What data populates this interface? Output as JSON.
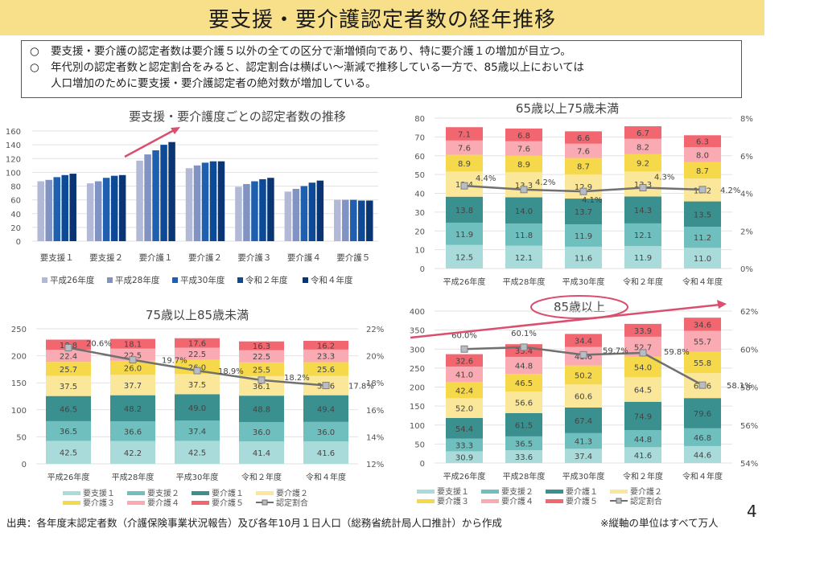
{
  "page": {
    "title": "要支援・要介護認定者数の経年推移",
    "summary": [
      {
        "bullet": "○",
        "text": "要支援・要介護の認定者数は要介護５以外の全ての区分で漸増傾向であり、特に要介護１の増加が目立つ。"
      },
      {
        "bullet": "○",
        "text": "年代別の認定者数と認定割合をみると、認定割合は横ばい～漸減で推移している一方で、85歳以上においては"
      },
      {
        "bullet": "",
        "text": "人口増加のために要支援・要介護認定者の絶対数が増加している。"
      }
    ],
    "source": "出典：各年度末認定者数（介護保険事業状況報告）及び各年10月１日人口（総務省統計局人口推計）から作成",
    "note": "※縦軸の単位はすべて万人",
    "page_number": "4"
  },
  "colors": {
    "years": [
      "#b1b9d6",
      "#8093c2",
      "#1f5fb0",
      "#0c4a97",
      "#0a3574"
    ],
    "levels": [
      "#a9dbdb",
      "#6fbfbf",
      "#3a8f8f",
      "#fbe79a",
      "#f6d94a",
      "#f9aab3",
      "#f26670"
    ],
    "ratio_line": "#707070",
    "arrow": "#d94f6e"
  },
  "chart_data": [
    {
      "type": "bar",
      "title": "要支援・要介護度ごとの認定者数の推移",
      "categories": [
        "要支援１",
        "要支援２",
        "要介護１",
        "要介護２",
        "要介護３",
        "要介護４",
        "要介護５"
      ],
      "series": [
        {
          "name": "平成26年度",
          "values": [
            87,
            84,
            117,
            106,
            79,
            72,
            60
          ]
        },
        {
          "name": "平成28年度",
          "values": [
            89,
            87,
            126,
            110,
            83,
            76,
            60
          ]
        },
        {
          "name": "平成30年度",
          "values": [
            93,
            92,
            132,
            114,
            87,
            80,
            60
          ]
        },
        {
          "name": "令和２年度",
          "values": [
            96,
            95,
            140,
            116,
            90,
            85,
            59
          ]
        },
        {
          "name": "令和４年度",
          "values": [
            98,
            96,
            144,
            116,
            92,
            88,
            59
          ]
        }
      ],
      "ylim": [
        0,
        160
      ],
      "yticks": [
        0,
        20,
        40,
        60,
        80,
        100,
        120,
        140,
        160
      ],
      "legend": "bottom",
      "grid": true
    },
    {
      "type": "bar",
      "stacked": true,
      "title": "65歳以上75歳未満",
      "categories": [
        "平成26年度",
        "平成28年度",
        "平成30年度",
        "令和２年度",
        "令和４年度"
      ],
      "series": [
        {
          "name": "要支援１",
          "values": [
            12.5,
            12.1,
            11.6,
            11.9,
            11.0
          ]
        },
        {
          "name": "要支援２",
          "values": [
            11.9,
            11.8,
            11.9,
            12.1,
            11.2
          ]
        },
        {
          "name": "要介護１",
          "values": [
            13.8,
            14.0,
            13.7,
            14.3,
            13.5
          ]
        },
        {
          "name": "要介護２",
          "values": [
            13.4,
            13.3,
            12.9,
            13.3,
            12.2
          ]
        },
        {
          "name": "要介護３",
          "values": [
            8.9,
            8.9,
            8.7,
            9.2,
            8.7
          ]
        },
        {
          "name": "要介護４",
          "values": [
            7.6,
            7.6,
            7.6,
            8.2,
            8.0
          ]
        },
        {
          "name": "要介護５",
          "values": [
            7.1,
            6.8,
            6.6,
            6.7,
            6.3
          ]
        }
      ],
      "line": {
        "name": "認定割合",
        "values": [
          4.4,
          4.2,
          4.1,
          4.3,
          4.2
        ],
        "labels": [
          "4.4%",
          "4.2%",
          "4.1%",
          "4.3%",
          "4.2%"
        ]
      },
      "ylim": [
        0,
        80
      ],
      "yticks": [
        0,
        10,
        20,
        30,
        40,
        50,
        60,
        70,
        80
      ],
      "y2lim": [
        0,
        8
      ],
      "y2ticks": [
        "0%",
        "2%",
        "4%",
        "6%",
        "8%"
      ],
      "grid": true
    },
    {
      "type": "bar",
      "stacked": true,
      "title": "75歳以上85歳未満",
      "categories": [
        "平成26年度",
        "平成28年度",
        "平成30年度",
        "令和２年度",
        "令和４年度"
      ],
      "series": [
        {
          "name": "要支援１",
          "values": [
            42.5,
            42.2,
            42.5,
            41.4,
            41.6
          ]
        },
        {
          "name": "要支援２",
          "values": [
            36.5,
            36.6,
            37.4,
            36.0,
            36.0
          ]
        },
        {
          "name": "要介護１",
          "values": [
            46.5,
            48.2,
            49.0,
            48.8,
            49.4
          ]
        },
        {
          "name": "要介護２",
          "values": [
            37.5,
            37.7,
            37.5,
            36.1,
            35.6
          ]
        },
        {
          "name": "要介護３",
          "values": [
            25.7,
            26.0,
            26.0,
            25.5,
            25.6
          ]
        },
        {
          "name": "要介護４",
          "values": [
            22.4,
            22.5,
            22.5,
            22.5,
            23.3
          ]
        },
        {
          "name": "要介護５",
          "values": [
            18.8,
            18.1,
            17.6,
            16.3,
            16.2
          ]
        }
      ],
      "line": {
        "name": "認定割合",
        "values": [
          20.6,
          19.7,
          18.9,
          18.2,
          17.8
        ],
        "labels": [
          "20.6%",
          "19.7%",
          "18.9%",
          "18.2%",
          "17.8%"
        ]
      },
      "ylim": [
        0,
        250
      ],
      "yticks": [
        0,
        50,
        100,
        150,
        200,
        250
      ],
      "y2lim": [
        12,
        22
      ],
      "y2ticks": [
        "12%",
        "14%",
        "16%",
        "18%",
        "20%",
        "22%"
      ],
      "legend": "bottom",
      "grid": true
    },
    {
      "type": "bar",
      "stacked": true,
      "title": "85歳以上",
      "categories": [
        "平成26年度",
        "平成28年度",
        "平成30年度",
        "令和２年度",
        "令和４年度"
      ],
      "series": [
        {
          "name": "要支援１",
          "values": [
            30.9,
            33.6,
            37.4,
            41.6,
            44.6
          ]
        },
        {
          "name": "要支援２",
          "values": [
            33.3,
            36.5,
            41.3,
            44.8,
            46.8
          ]
        },
        {
          "name": "要介護１",
          "values": [
            54.4,
            61.5,
            67.4,
            74.9,
            79.6
          ]
        },
        {
          "name": "要介護２",
          "values": [
            52.0,
            56.6,
            60.6,
            64.5,
            65.6
          ]
        },
        {
          "name": "要介護３",
          "values": [
            42.4,
            46.5,
            50.2,
            54.0,
            55.8
          ]
        },
        {
          "name": "要介護４",
          "values": [
            41.0,
            44.8,
            48.6,
            52.7,
            55.7
          ]
        },
        {
          "name": "要介護５",
          "values": [
            32.6,
            33.4,
            34.4,
            33.9,
            34.6
          ]
        }
      ],
      "line": {
        "name": "認定割合",
        "values": [
          60.0,
          60.1,
          59.7,
          59.8,
          58.1
        ],
        "labels": [
          "60.0%",
          "60.1%",
          "59.7%",
          "59.8%",
          "58.1%"
        ]
      },
      "ylim": [
        0,
        400
      ],
      "yticks": [
        0,
        50,
        100,
        150,
        200,
        250,
        300,
        350,
        400
      ],
      "y2lim": [
        54,
        62
      ],
      "y2ticks": [
        "54%",
        "56%",
        "58%",
        "60%",
        "62%"
      ],
      "legend": "bottom",
      "grid": true
    }
  ],
  "legend_ratio": "認定割合"
}
